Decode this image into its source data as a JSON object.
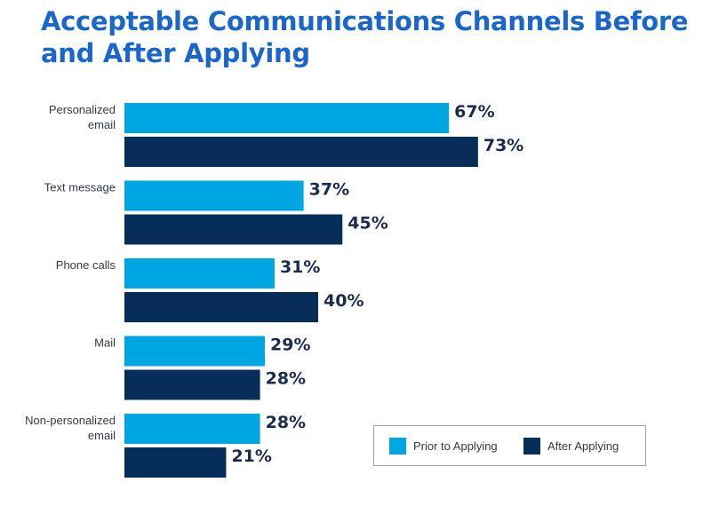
{
  "chart_data": {
    "type": "bar",
    "orientation": "horizontal",
    "title": "Acceptable Communications Channels Before and After Applying",
    "categories": [
      [
        "Personalized",
        "email"
      ],
      [
        "Text message"
      ],
      [
        "Phone calls"
      ],
      [
        "Mail"
      ],
      [
        "Non-personalized",
        "email"
      ]
    ],
    "series": [
      {
        "name": "Prior to Applying",
        "values": [
          67,
          37,
          31,
          29,
          28
        ],
        "labels": [
          "67%",
          "37%",
          "31%",
          "29%",
          "28%"
        ],
        "color": "#00a6e1"
      },
      {
        "name": "After Applying",
        "values": [
          73,
          45,
          40,
          28,
          21
        ],
        "labels": [
          "73%",
          "45%",
          "40%",
          "28%",
          "21%"
        ],
        "color": "#072d5a"
      }
    ],
    "value_unit": "%",
    "grid": false,
    "legend_position": "bottom-right"
  }
}
